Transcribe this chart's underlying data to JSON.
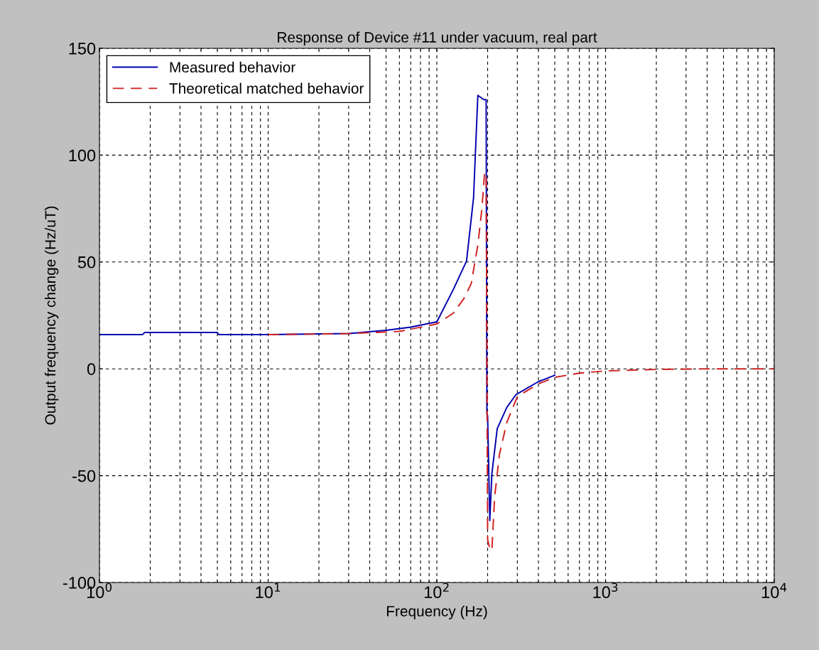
{
  "chart_data": {
    "type": "line",
    "title": "Response of Device #11 under vacuum, real part",
    "xlabel": "Frequency (Hz)",
    "ylabel": "Output frequency change (Hz/uT)",
    "log": "x",
    "xlim": [
      1,
      10000
    ],
    "xticks": [
      {
        "value": 1,
        "label": "10$^{0}$"
      },
      {
        "value": 10,
        "label": "10$^{1}$"
      },
      {
        "value": 100,
        "label": "10$^{2}$"
      },
      {
        "value": 1000,
        "label": "10$^{3}$"
      },
      {
        "value": 10000,
        "label": "10$^{4}$"
      }
    ],
    "ylim": [
      -100,
      150
    ],
    "yticks": [
      -100,
      -50,
      0,
      50,
      100,
      150
    ],
    "grid": true,
    "legend": "top left",
    "series": [
      {
        "name": "Measured behavior",
        "color": "#0000b0",
        "line_style": "solid",
        "x": [
          1,
          1.8,
          1.85,
          5,
          5.1,
          10,
          30,
          50,
          70,
          100,
          125,
          150,
          165,
          175,
          190,
          196,
          198,
          200,
          206,
          212,
          228,
          260,
          295,
          400,
          500
        ],
        "values": [
          16,
          16,
          17,
          17,
          16,
          16,
          16.5,
          18,
          19.5,
          22,
          37,
          50.5,
          80,
          128,
          126,
          126,
          -21,
          -22,
          -71,
          -49,
          -28,
          -18,
          -12,
          -6,
          -3
        ]
      },
      {
        "name": "Theoretical matched behavior",
        "color": "#d02020",
        "line_style": "dashed",
        "x": [
          10,
          30,
          60,
          100,
          125,
          145,
          160,
          175,
          185,
          192,
          196,
          200,
          206,
          212,
          220,
          235,
          260,
          300,
          400,
          500,
          700,
          1000,
          2000,
          4000,
          10000
        ],
        "values": [
          16,
          16.5,
          17.5,
          21,
          26,
          33,
          40,
          58,
          75,
          92,
          90,
          -80,
          -84,
          -85,
          -60,
          -40,
          -25,
          -13,
          -7,
          -4,
          -2,
          -1,
          -0.3,
          0,
          0
        ]
      }
    ]
  }
}
